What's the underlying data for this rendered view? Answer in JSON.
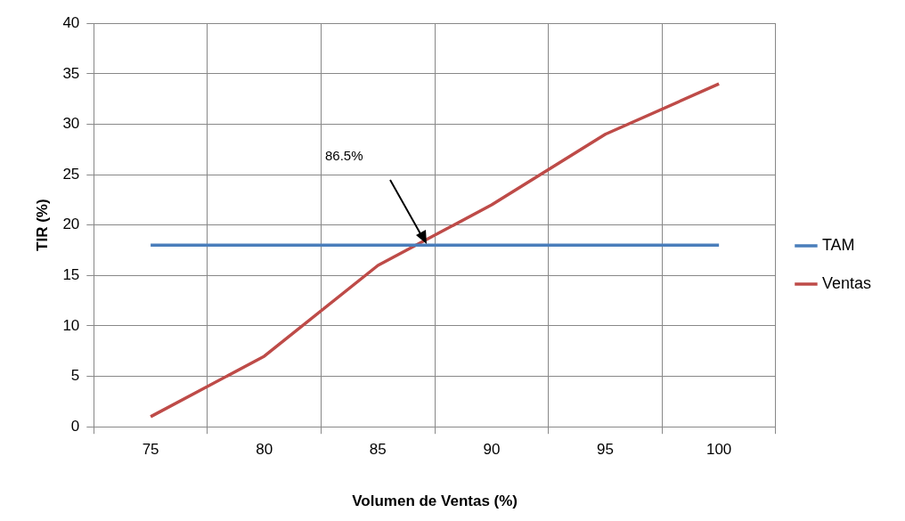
{
  "chart_data": {
    "type": "line",
    "categories": [
      "75",
      "80",
      "85",
      "90",
      "95",
      "100"
    ],
    "series": [
      {
        "name": "TAM",
        "color": "#4a7ebb",
        "values": [
          18,
          18,
          18,
          18,
          18,
          18
        ]
      },
      {
        "name": "Ventas",
        "color": "#be4b48",
        "values": [
          1,
          7,
          16,
          22,
          29,
          34
        ]
      }
    ],
    "xlabel": "Volumen de Ventas (%)",
    "ylabel": "TIR (%)",
    "ylim": [
      0,
      40
    ],
    "yticks": [
      0,
      5,
      10,
      15,
      20,
      25,
      30,
      35,
      40
    ],
    "grid": true,
    "legend": "right",
    "marker": "none",
    "line_style": "solid",
    "annotations": [
      "86.5%"
    ]
  }
}
